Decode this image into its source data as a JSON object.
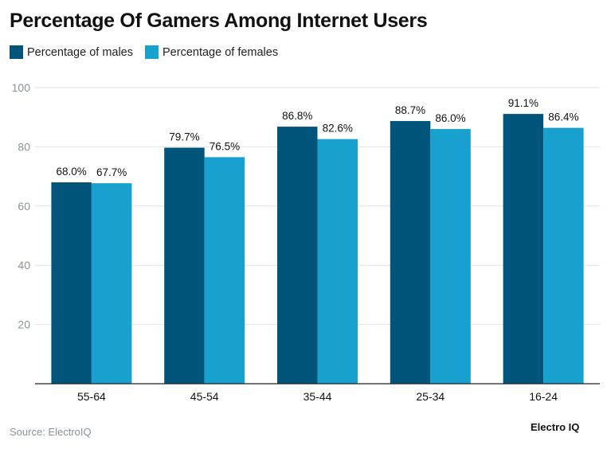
{
  "chart_data": {
    "type": "bar",
    "title": "Percentage Of Gamers Among Internet Users",
    "categories": [
      "55-64",
      "45-54",
      "35-44",
      "25-34",
      "16-24"
    ],
    "series": [
      {
        "name": "Percentage of males",
        "color": "#01547a",
        "values": [
          68.0,
          79.7,
          86.8,
          88.7,
          91.1
        ],
        "labels": [
          "68.0%",
          "79.7%",
          "86.8%",
          "88.7%",
          "91.1%"
        ]
      },
      {
        "name": "Percentage of females",
        "color": "#18a1cf",
        "values": [
          67.7,
          76.5,
          82.6,
          86.0,
          86.4
        ],
        "labels": [
          "67.7%",
          "76.5%",
          "82.6%",
          "86.0%",
          "86.4%"
        ]
      }
    ],
    "ylim": [
      0,
      100
    ],
    "yticks": [
      20,
      40,
      60,
      80,
      100
    ],
    "grid": true,
    "legend": "top-left",
    "xlabel": "",
    "ylabel": ""
  },
  "footer": {
    "source": "Source: ElectroIQ",
    "brand": "Electro IQ"
  }
}
